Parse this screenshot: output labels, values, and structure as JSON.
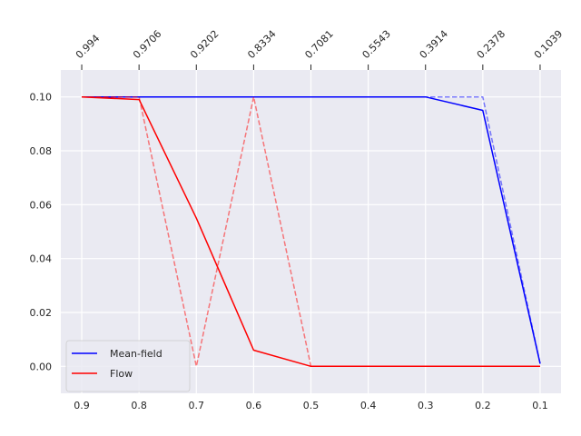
{
  "chart_data": {
    "type": "line",
    "title": "",
    "xlabel": "",
    "ylabel": "",
    "x_reversed": true,
    "xlim": [
      0.9365,
      0.0635
    ],
    "ylim": [
      -0.01,
      0.11
    ],
    "x_ticks": [
      "0.9",
      "0.8",
      "0.7",
      "0.6",
      "0.5",
      "0.4",
      "0.3",
      "0.2",
      "0.1"
    ],
    "y_ticks": [
      "0.00",
      "0.02",
      "0.04",
      "0.06",
      "0.08",
      "0.10"
    ],
    "top_axis_ticks": [
      {
        "x": 0.9,
        "label": "0.994"
      },
      {
        "x": 0.8,
        "label": "0.9706"
      },
      {
        "x": 0.7,
        "label": "0.9202"
      },
      {
        "x": 0.6,
        "label": "0.8334"
      },
      {
        "x": 0.5,
        "label": "0.7081"
      },
      {
        "x": 0.4,
        "label": "0.5543"
      },
      {
        "x": 0.3,
        "label": "0.3914"
      },
      {
        "x": 0.2,
        "label": "0.2378"
      },
      {
        "x": 0.1,
        "label": "0.1039"
      }
    ],
    "grid": true,
    "legend_position": "lower-left",
    "series": [
      {
        "name": "Mean-field",
        "color": "#0000ff",
        "dash": "solid",
        "opacity": 1,
        "x": [
          0.9,
          0.8,
          0.7,
          0.6,
          0.5,
          0.4,
          0.3,
          0.2,
          0.1
        ],
        "y": [
          0.1,
          0.1,
          0.1,
          0.1,
          0.1,
          0.1,
          0.1,
          0.095,
          0.001
        ]
      },
      {
        "name": "",
        "color": "#0000ff",
        "dash": "dashed",
        "opacity": 0.5,
        "x": [
          0.9,
          0.8,
          0.7,
          0.6,
          0.5,
          0.4,
          0.3,
          0.2,
          0.1
        ],
        "y": [
          0.1,
          0.1,
          0.1,
          0.1,
          0.1,
          0.1,
          0.1,
          0.1,
          0.001
        ]
      },
      {
        "name": "Flow",
        "color": "#ff0000",
        "dash": "solid",
        "opacity": 1,
        "x": [
          0.9,
          0.8,
          0.7,
          0.6,
          0.5,
          0.4,
          0.3,
          0.2,
          0.1
        ],
        "y": [
          0.1,
          0.099,
          0.055,
          0.006,
          0.0,
          0.0,
          0.0,
          0.0,
          0.0
        ]
      },
      {
        "name": "",
        "color": "#ff0000",
        "dash": "dashed",
        "opacity": 0.5,
        "x": [
          0.9,
          0.8,
          0.7,
          0.6,
          0.5,
          0.4,
          0.3,
          0.2,
          0.1
        ],
        "y": [
          0.1,
          0.1,
          0.0,
          0.1,
          0.0,
          0.0,
          0.0,
          0.0,
          0.0
        ]
      }
    ]
  }
}
